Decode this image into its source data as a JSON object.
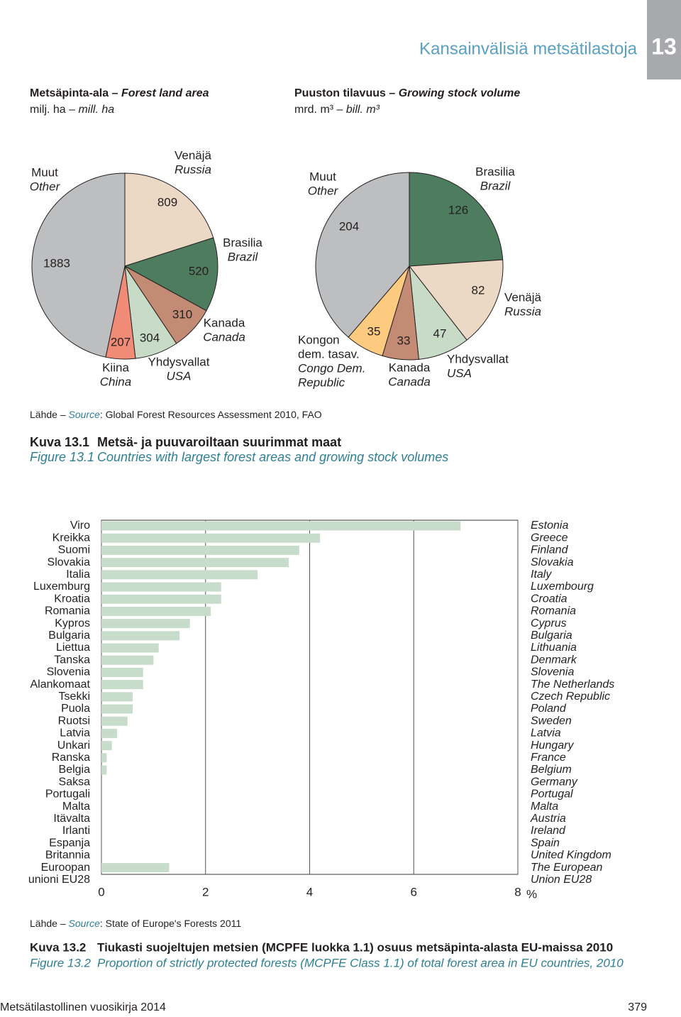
{
  "header": {
    "title": "Kansainvälisiä metsätilastoja",
    "chapter": "13"
  },
  "source1": [
    "Lähde – ",
    "Source",
    ": Global Forest Resources Assessment 2010, FAO"
  ],
  "caption1": {
    "fi": [
      "Kuva 13.1",
      "Metsä- ja puuvaroiltaan suurimmat maat"
    ],
    "en": [
      "Figure 13.1",
      "Countries with largest forest areas and growing stock volumes"
    ]
  },
  "source2": [
    "Lähde – ",
    "Source",
    ": State of Europe's Forests 2011"
  ],
  "caption2": {
    "fi": [
      "Kuva 13.2",
      "Tiukasti suojeltujen metsien (MCPFE luokka 1.1) osuus metsäpinta-alasta EU-maissa 2010"
    ],
    "en": [
      "Figure 13.2",
      "Proportion of strictly protected forests (MCPFE Class 1.1) of total forest area in EU countries, 2010"
    ]
  },
  "footer": {
    "left": "Metsätilastollinen vuosikirja 2014",
    "page": "379"
  },
  "chart_data": [
    {
      "type": "pie",
      "title": [
        "Metsäpinta-ala – ",
        "Forest land area"
      ],
      "subtitle": [
        "milj. ha – ",
        "mill. ha"
      ],
      "labels": [
        [
          "Venäjä"
        ],
        [
          "Brasilia"
        ],
        [
          "Kanada"
        ],
        [
          "Yhdysvallat"
        ],
        [
          "Kiina"
        ],
        [
          "Muut"
        ]
      ],
      "labels_en": [
        [
          "Russia"
        ],
        [
          "Brazil"
        ],
        [
          "Canada"
        ],
        [
          "USA"
        ],
        [
          "China"
        ],
        [
          "Other"
        ]
      ],
      "values": [
        809,
        520,
        310,
        304,
        207,
        1883
      ],
      "colors": [
        "#ecd9c5",
        "#4e7c5f",
        "#c48b74",
        "#c7dbc6",
        "#f08b78",
        "#bcbec0"
      ]
    },
    {
      "type": "pie",
      "title": [
        "Puuston tilavuus – ",
        "Growing stock volume"
      ],
      "subtitle": [
        "mrd. m³ – ",
        "bill. m³"
      ],
      "labels": [
        [
          "Brasilia"
        ],
        [
          "Venäjä"
        ],
        [
          "Yhdysvallat"
        ],
        [
          "Kanada"
        ],
        [
          "Kongon",
          "dem. tasav."
        ],
        [
          "Muut"
        ]
      ],
      "labels_en": [
        [
          "Brazil"
        ],
        [
          "Russia"
        ],
        [
          "USA"
        ],
        [
          "Canada"
        ],
        [
          "Congo Dem.",
          "Republic"
        ],
        [
          "Other"
        ]
      ],
      "values": [
        126,
        82,
        47,
        33,
        35,
        204
      ],
      "colors": [
        "#4e7c5f",
        "#ecd9c5",
        "#c7dbc6",
        "#c48b74",
        "#fdcb80",
        "#bcbec0"
      ]
    },
    {
      "type": "bar",
      "orientation": "horizontal",
      "categories": [
        [
          "Viro"
        ],
        [
          "Kreikka"
        ],
        [
          "Suomi"
        ],
        [
          "Slovakia"
        ],
        [
          "Italia"
        ],
        [
          "Luxemburg"
        ],
        [
          "Kroatia"
        ],
        [
          "Romania"
        ],
        [
          "Kypros"
        ],
        [
          "Bulgaria"
        ],
        [
          "Liettua"
        ],
        [
          "Tanska"
        ],
        [
          "Slovenia"
        ],
        [
          "Alankomaat"
        ],
        [
          "Tsekki"
        ],
        [
          "Puola"
        ],
        [
          "Ruotsi"
        ],
        [
          "Latvia"
        ],
        [
          "Unkari"
        ],
        [
          "Ranska"
        ],
        [
          "Belgia"
        ],
        [
          "Saksa"
        ],
        [
          "Portugali"
        ],
        [
          "Malta"
        ],
        [
          "Itävalta"
        ],
        [
          "Irlanti"
        ],
        [
          "Espanja"
        ],
        [
          "Britannia"
        ],
        [
          "Euroopan",
          "unioni EU28"
        ]
      ],
      "categories_en": [
        [
          "Estonia"
        ],
        [
          "Greece"
        ],
        [
          "Finland"
        ],
        [
          "Slovakia"
        ],
        [
          "Italy"
        ],
        [
          "Luxembourg"
        ],
        [
          "Croatia"
        ],
        [
          "Romania"
        ],
        [
          "Cyprus"
        ],
        [
          "Bulgaria"
        ],
        [
          "Lithuania"
        ],
        [
          "Denmark"
        ],
        [
          "Slovenia"
        ],
        [
          "The Netherlands"
        ],
        [
          "Czech Republic"
        ],
        [
          "Poland"
        ],
        [
          "Sweden"
        ],
        [
          "Latvia"
        ],
        [
          "Hungary"
        ],
        [
          "France"
        ],
        [
          "Belgium"
        ],
        [
          "Germany"
        ],
        [
          "Portugal"
        ],
        [
          "Malta"
        ],
        [
          "Austria"
        ],
        [
          "Ireland"
        ],
        [
          "Spain"
        ],
        [
          "United Kingdom"
        ],
        [
          "The European",
          "Union EU28"
        ]
      ],
      "values": [
        6.9,
        4.2,
        3.8,
        3.6,
        3.0,
        2.3,
        2.3,
        2.1,
        1.7,
        1.5,
        1.1,
        1.0,
        0.8,
        0.8,
        0.6,
        0.6,
        0.5,
        0.3,
        0.2,
        0.1,
        0.1,
        0,
        0,
        0,
        0,
        0,
        0,
        0,
        1.3
      ],
      "color": "#c8dccb",
      "xlim": [
        0,
        8
      ],
      "xticks": [
        0,
        2,
        4,
        6,
        8
      ],
      "xlabel": "%",
      "grid": true
    }
  ]
}
